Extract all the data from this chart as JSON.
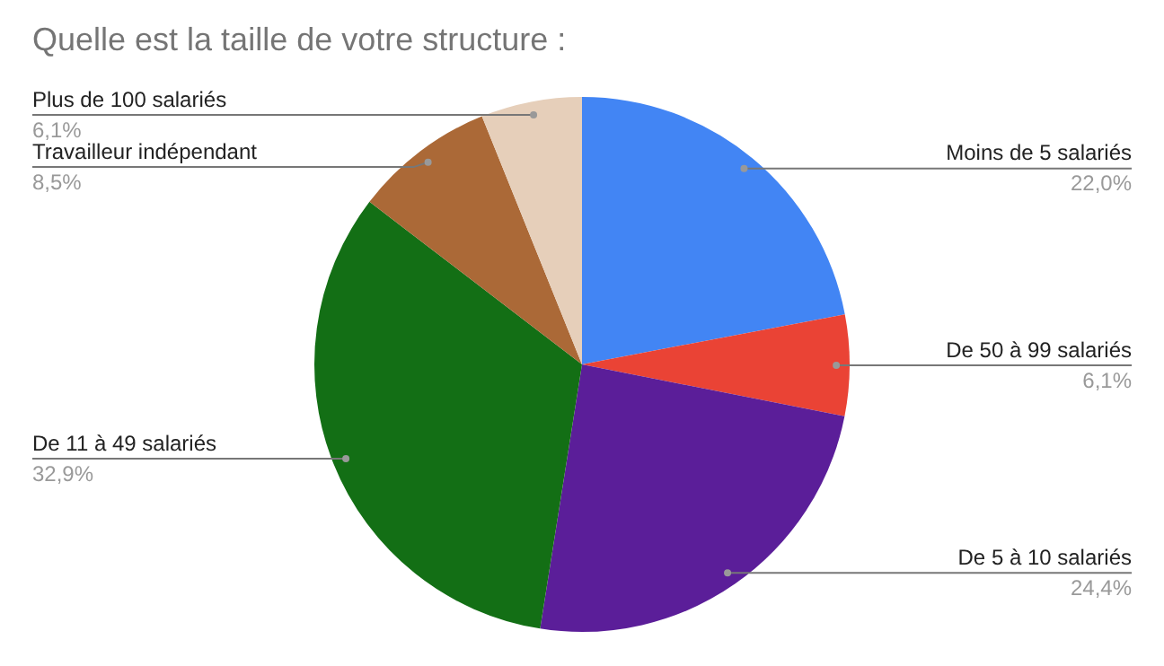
{
  "chart_data": {
    "type": "pie",
    "title": "Quelle est la taille de votre structure :",
    "categories": [
      "Moins de 5 salariés",
      "De 50 à 99 salariés",
      "De 5 à 10 salariés",
      "De 11 à 49 salariés",
      "Travailleur indépendant",
      "Plus de 100 salariés"
    ],
    "values": [
      22.0,
      6.1,
      24.4,
      32.9,
      8.5,
      6.1
    ],
    "value_labels": [
      "22,0%",
      "6,1%",
      "24,4%",
      "32,9%",
      "8,5%",
      "6,1%"
    ],
    "colors": [
      "#4285f4",
      "#ea4335",
      "#5b1e99",
      "#136f15",
      "#ab6937",
      "#e6cfba"
    ],
    "legend": false
  }
}
